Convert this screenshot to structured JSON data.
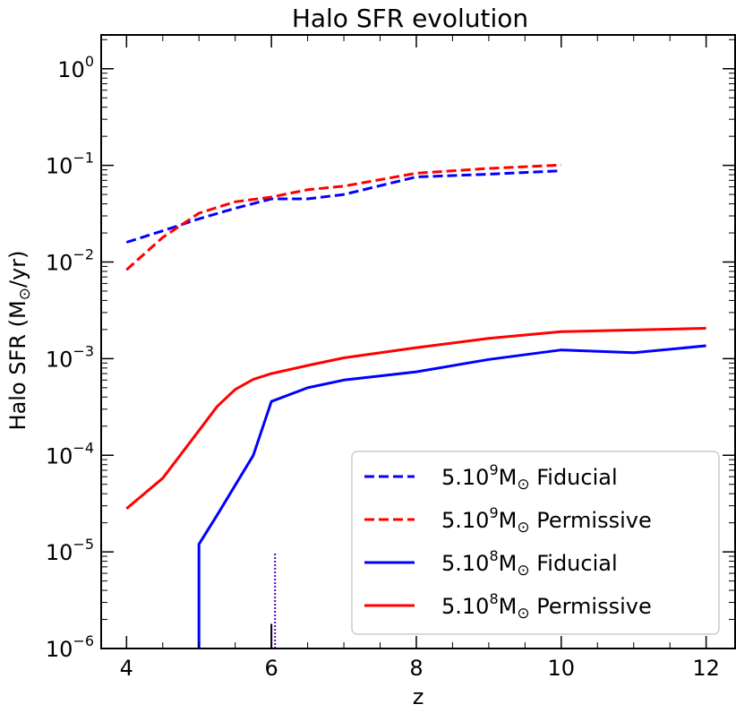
{
  "chart_data": {
    "type": "line",
    "title": "Halo SFR evolution",
    "xlabel": "z",
    "ylabel_prefix": "Halo SFR (M",
    "ylabel_sub": "⊙",
    "ylabel_suffix": "/yr)",
    "xlim": [
      3.65,
      12.4
    ],
    "ylog_range": [
      -6,
      0.35
    ],
    "x_ticks": [
      4,
      6,
      8,
      10,
      12
    ],
    "x_tick_labels": [
      "4",
      "6",
      "8",
      "10",
      "12"
    ],
    "y_tick_exponents": [
      -6,
      -5,
      -4,
      -3,
      -2,
      -1,
      0
    ],
    "y_tick_base": "10",
    "y_tick_exp_labels": [
      "−6",
      "−5",
      "−4",
      "−3",
      "−2",
      "−1",
      "0"
    ],
    "legend_position": "lower-right",
    "series": [
      {
        "name": "5.10^9 M⊙ Fiducial",
        "legend_pre": "5.10",
        "legend_sup": "9",
        "legend_m": "M",
        "legend_sun": "⊙",
        "legend_post": " Fiducial",
        "color": "#0000ff",
        "dashed": true,
        "x": [
          4,
          4.5,
          5,
          5.5,
          6,
          6.5,
          7,
          8,
          9,
          10
        ],
        "y": [
          0.016,
          0.021,
          0.028,
          0.036,
          0.045,
          0.045,
          0.05,
          0.076,
          0.081,
          0.088
        ]
      },
      {
        "name": "5.10^9 M⊙ Permissive",
        "legend_pre": "5.10",
        "legend_sup": "9",
        "legend_m": "M",
        "legend_sun": "⊙",
        "legend_post": " Permissive",
        "color": "#ff0000",
        "dashed": true,
        "x": [
          4,
          4.5,
          5,
          5.5,
          6,
          6.5,
          7,
          8,
          9,
          10
        ],
        "y": [
          0.0083,
          0.018,
          0.032,
          0.042,
          0.047,
          0.056,
          0.061,
          0.083,
          0.093,
          0.101
        ]
      },
      {
        "name": "5.10^8 M⊙ Fiducial",
        "legend_pre": "5.10",
        "legend_sup": "8",
        "legend_m": "M",
        "legend_sun": "⊙",
        "legend_post": " Fiducial",
        "color": "#0000ff",
        "dashed": false,
        "x": [
          5,
          5,
          5.25,
          5.5,
          5.75,
          6,
          6.5,
          7,
          8,
          9,
          10,
          11,
          12
        ],
        "y": [
          1e-06,
          1.2e-05,
          2.4e-05,
          4.9e-05,
          0.0001,
          0.00036,
          0.0005,
          0.0006,
          0.00073,
          0.00098,
          0.00123,
          0.00115,
          0.00136
        ]
      },
      {
        "name": "5.10^8 M⊙ Permissive",
        "legend_pre": "5.10",
        "legend_sup": "8",
        "legend_m": "M",
        "legend_sun": "⊙",
        "legend_post": " Permissive",
        "color": "#ff0000",
        "dashed": false,
        "x": [
          4,
          4.5,
          5,
          5.25,
          5.5,
          5.75,
          6,
          6.5,
          7,
          8,
          9,
          10,
          11,
          12
        ],
        "y": [
          2.8e-05,
          5.8e-05,
          0.00018,
          0.00032,
          0.00048,
          0.00061,
          0.0007,
          0.00085,
          0.00102,
          0.0013,
          0.00162,
          0.0019,
          0.00198,
          0.00206
        ]
      }
    ],
    "annotations": [
      {
        "type": "vline",
        "x": 6.05,
        "y_from": 1e-06,
        "y_to": 1e-05,
        "color": "#5500cc",
        "style": "dotted"
      },
      {
        "type": "vline",
        "x": 6.0,
        "y_from": 1e-06,
        "y_to": 1.8e-06,
        "color": "#000000",
        "style": "solid"
      }
    ]
  }
}
